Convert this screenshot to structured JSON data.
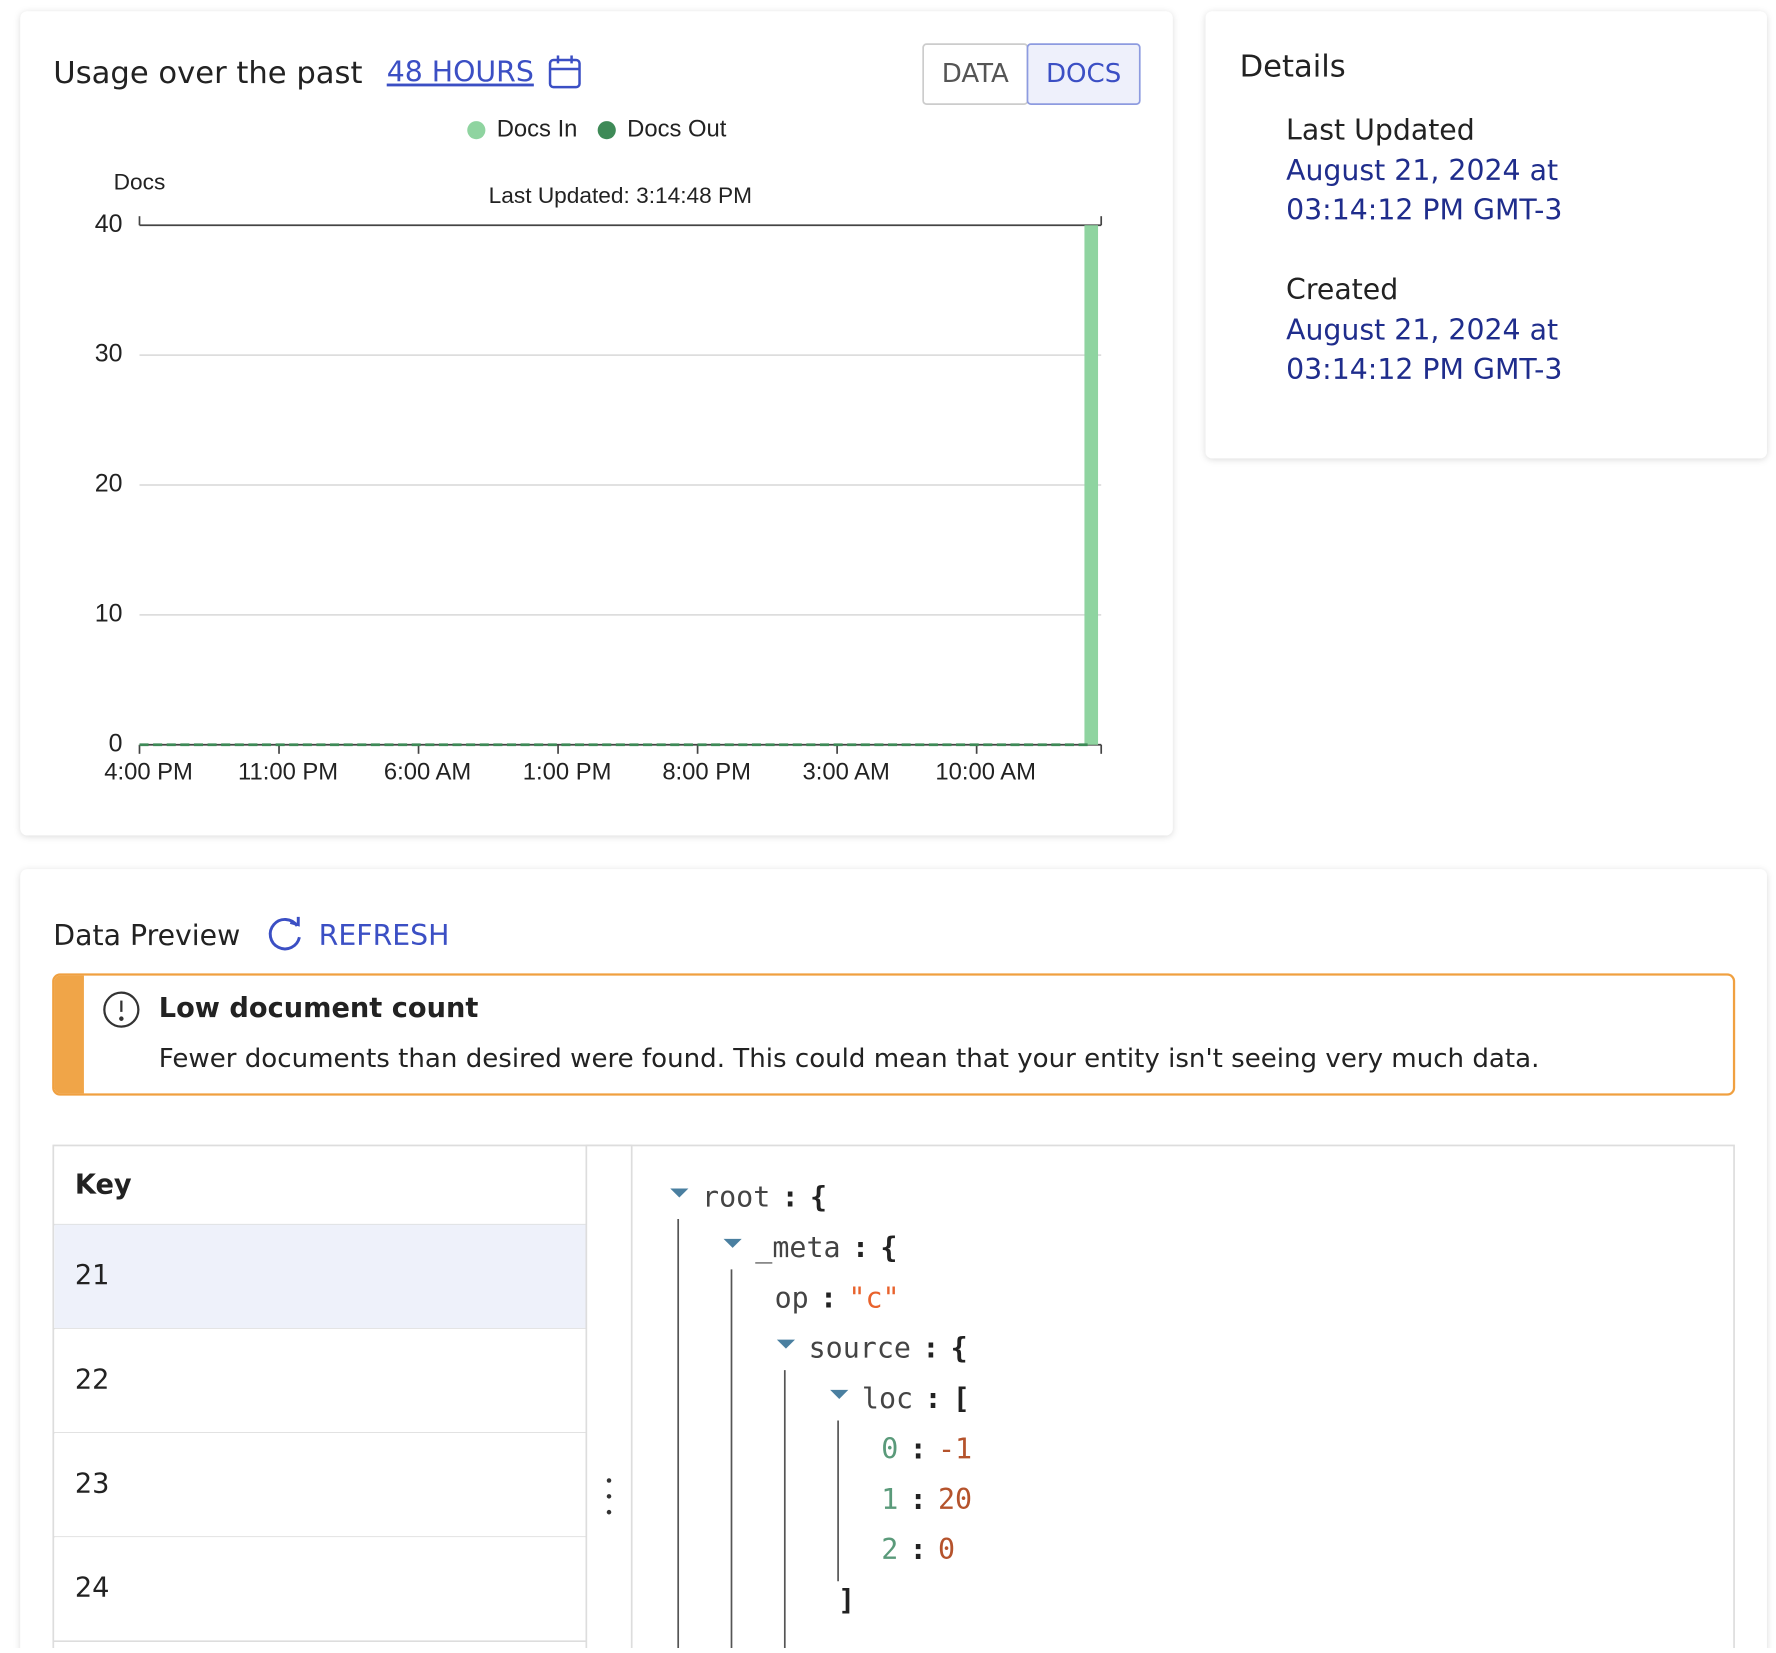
{
  "usage": {
    "title": "Usage over the past",
    "range": "48 HOURS",
    "toggle": [
      "DATA",
      "DOCS"
    ],
    "active_toggle": 1
  },
  "chart_data": {
    "type": "bar",
    "y_label": "Docs",
    "annotation": "Last Updated: 3:14:48 PM",
    "series": [
      {
        "name": "Docs In",
        "color": "#8fd4a0",
        "type": "bar",
        "x": [
          47.75
        ],
        "values": [
          40
        ]
      },
      {
        "name": "Docs Out",
        "color": "#3e8a57",
        "type": "line",
        "dashed": true,
        "x": [
          0,
          47.75
        ],
        "values": [
          0,
          0
        ]
      }
    ],
    "xlim": [
      0,
      48.25
    ],
    "xticks": [
      {
        "value": 0,
        "label": "4:00 PM"
      },
      {
        "value": 7,
        "label": "11:00 PM"
      },
      {
        "value": 14,
        "label": "6:00 AM"
      },
      {
        "value": 21,
        "label": "1:00 PM"
      },
      {
        "value": 28,
        "label": "8:00 PM"
      },
      {
        "value": 35,
        "label": "3:00 AM"
      },
      {
        "value": 42,
        "label": "10:00 AM"
      }
    ],
    "ylim": [
      0,
      40
    ],
    "yticks": [
      0,
      10,
      20,
      30,
      40
    ],
    "grid": true
  },
  "details": {
    "title": "Details",
    "items": [
      {
        "label": "Last Updated",
        "value": "August 21, 2024 at 03:14:12 PM GMT-3"
      },
      {
        "label": "Created",
        "value": "August 21, 2024 at 03:14:12 PM GMT-3"
      }
    ]
  },
  "preview": {
    "title": "Data Preview",
    "refresh": "REFRESH",
    "alert": {
      "title": "Low document count",
      "message": "Fewer documents than desired were found. This could mean that your entity isn't seeing very much data."
    },
    "table": {
      "header": "Key",
      "rows": [
        "21",
        "22",
        "23",
        "24"
      ],
      "selected": 0
    },
    "tree": {
      "key": "root",
      "sep": ":",
      "value": "{",
      "children": [
        {
          "key": "_meta",
          "sep": ":",
          "value": "{",
          "children": [
            {
              "key": "op",
              "sep": ":",
              "value": "\"c\""
            },
            {
              "key": "source",
              "sep": ":",
              "value": "{",
              "children": [
                {
                  "key": "loc",
                  "sep": ":",
                  "value": "[",
                  "close": "]",
                  "children": [
                    {
                      "key": "0",
                      "sep": ":",
                      "value": "-1"
                    },
                    {
                      "key": "1",
                      "sep": ":",
                      "value": "20"
                    },
                    {
                      "key": "2",
                      "sep": ":",
                      "value": "0"
                    }
                  ]
                }
              ]
            }
          ]
        }
      ]
    }
  }
}
